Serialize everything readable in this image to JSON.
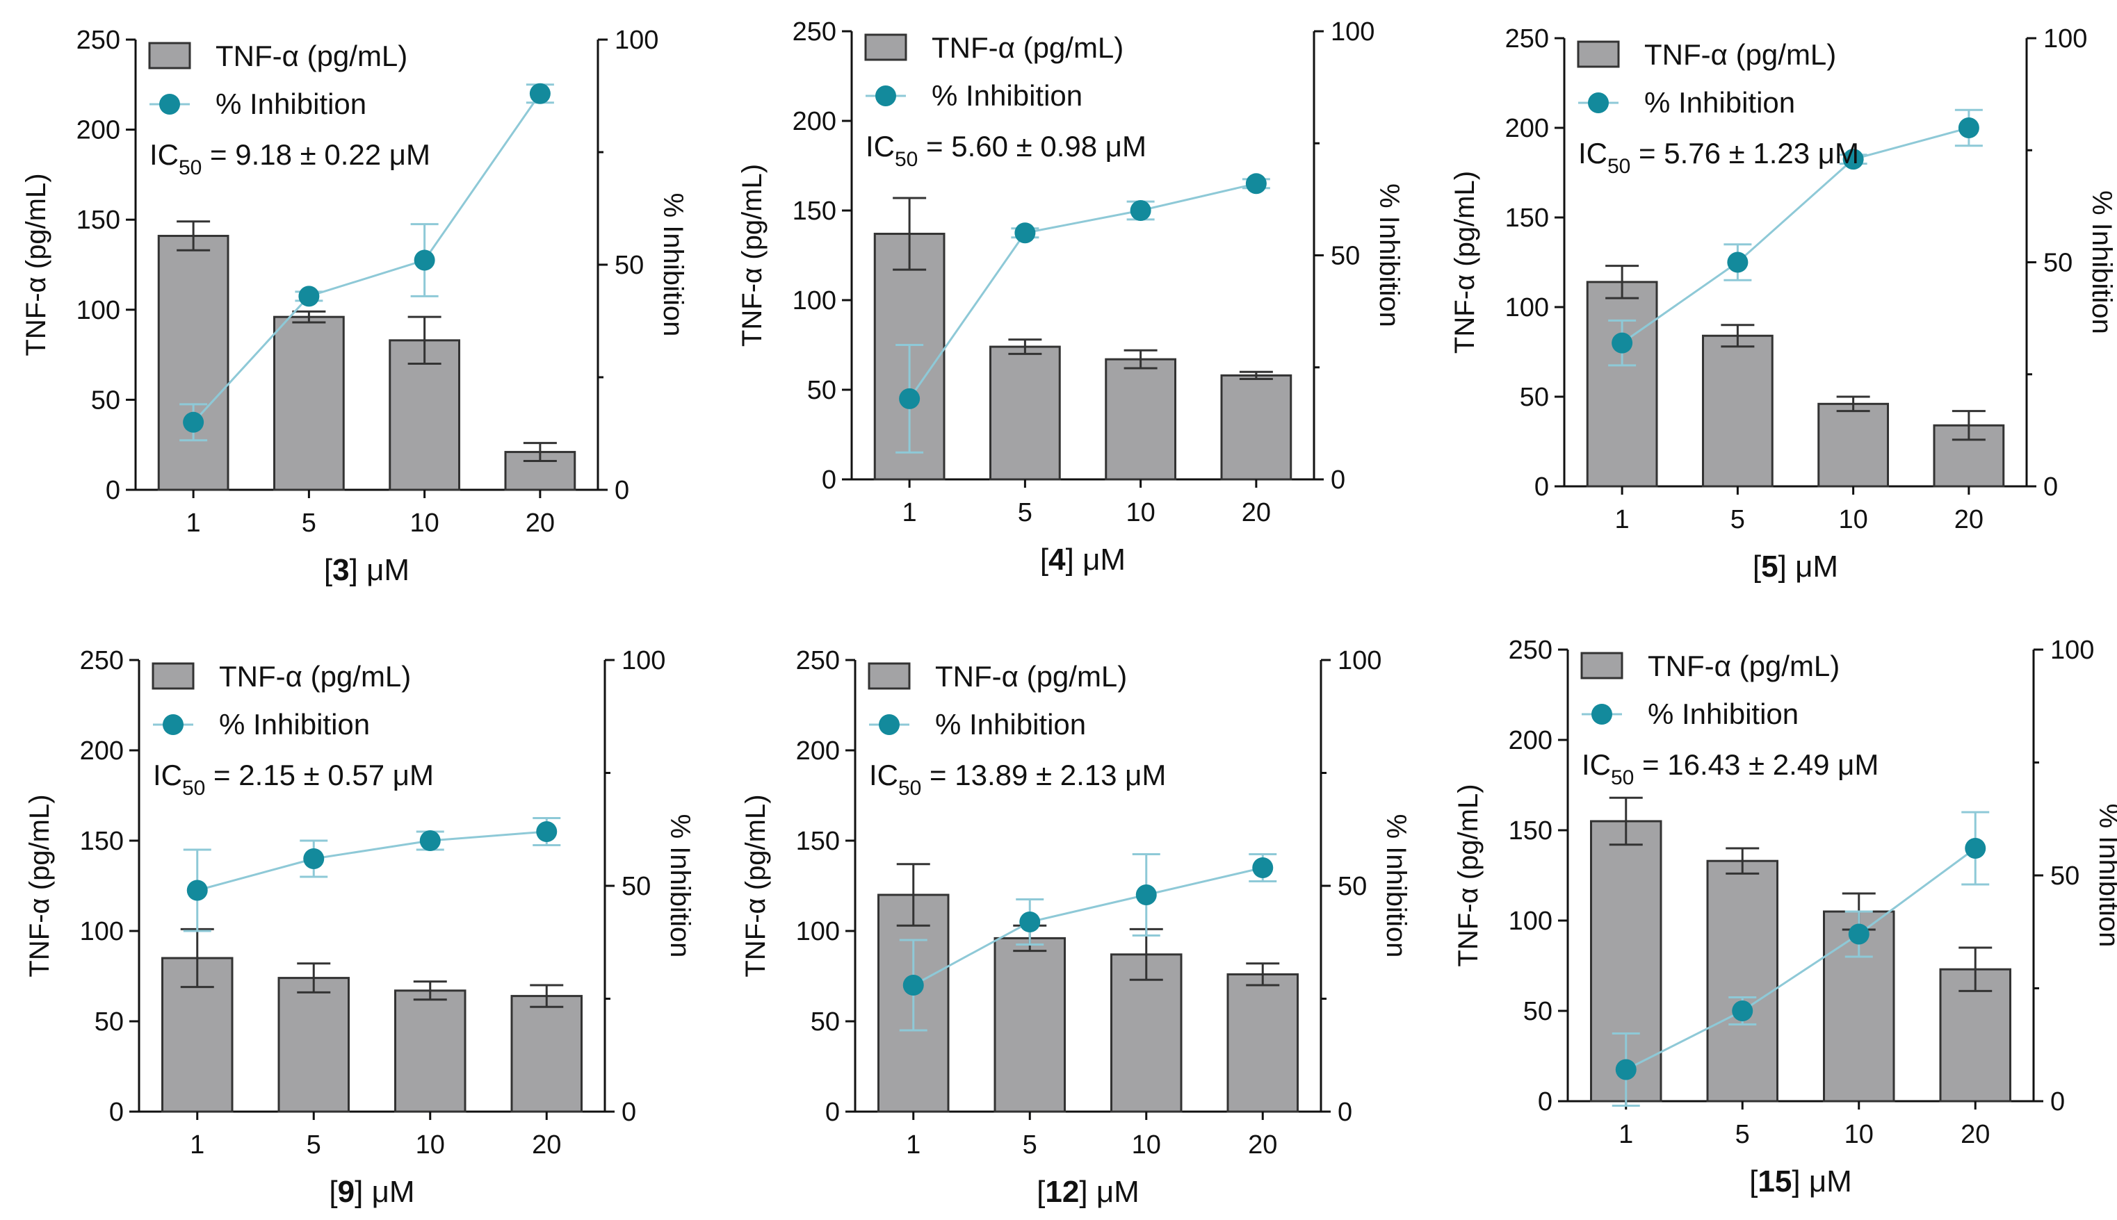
{
  "legend": {
    "bar_label": "TNF-α (pg/mL)",
    "line_label": "% Inhibition"
  },
  "colors": {
    "bar_fill": "#a3a3a5",
    "bar_stroke": "#333333",
    "line": "#8ec9d7",
    "marker": "#138a9c",
    "axis": "#111111"
  },
  "chart_data": [
    {
      "type": "bar",
      "compound": "3",
      "xlabel_unit": " μM",
      "ic50_prefix": "IC",
      "ic50_sub": "50",
      "ic50_value": " = 9.18 ± 0.22 μM",
      "categories": [
        "1",
        "5",
        "10",
        "20"
      ],
      "ylabel": "TNF-α (pg/mL)",
      "y2label": "% Inhibition",
      "ylim": [
        0,
        250
      ],
      "yticks": [
        0,
        50,
        100,
        150,
        200,
        250
      ],
      "y2lim": [
        0,
        100
      ],
      "y2ticks": [
        0,
        50,
        100
      ],
      "series": [
        {
          "name": "TNF-α (pg/mL)",
          "type": "bar",
          "axis": "left",
          "values": [
            141,
            96,
            83,
            21
          ],
          "errors": [
            8,
            3,
            13,
            5
          ]
        },
        {
          "name": "% Inhibition",
          "type": "line",
          "axis": "right",
          "values": [
            15,
            43,
            51,
            88
          ],
          "errors": [
            4,
            1,
            8,
            2
          ]
        }
      ]
    },
    {
      "type": "bar",
      "compound": "4",
      "xlabel_unit": " μM",
      "ic50_prefix": "IC",
      "ic50_sub": "50",
      "ic50_value": " = 5.60 ± 0.98 μM",
      "categories": [
        "1",
        "5",
        "10",
        "20"
      ],
      "ylabel": "TNF-α (pg/mL)",
      "y2label": "% Inhibition",
      "ylim": [
        0,
        250
      ],
      "yticks": [
        0,
        50,
        100,
        150,
        200,
        250
      ],
      "y2lim": [
        0,
        100
      ],
      "y2ticks": [
        0,
        50,
        100
      ],
      "series": [
        {
          "name": "TNF-α (pg/mL)",
          "type": "bar",
          "axis": "left",
          "values": [
            137,
            74,
            67,
            58
          ],
          "errors": [
            20,
            4,
            5,
            2
          ]
        },
        {
          "name": "% Inhibition",
          "type": "line",
          "axis": "right",
          "values": [
            18,
            55,
            60,
            66
          ],
          "errors": [
            12,
            1,
            2,
            1
          ]
        }
      ]
    },
    {
      "type": "bar",
      "compound": "5",
      "xlabel_unit": " μM",
      "ic50_prefix": "IC",
      "ic50_sub": "50",
      "ic50_value": " = 5.76 ± 1.23 μM",
      "categories": [
        "1",
        "5",
        "10",
        "20"
      ],
      "ylabel": "TNF-α (pg/mL)",
      "y2label": "% Inhibition",
      "ylim": [
        0,
        250
      ],
      "yticks": [
        0,
        50,
        100,
        150,
        200,
        250
      ],
      "y2lim": [
        0,
        100
      ],
      "y2ticks": [
        0,
        50,
        100
      ],
      "series": [
        {
          "name": "TNF-α (pg/mL)",
          "type": "bar",
          "axis": "left",
          "values": [
            114,
            84,
            46,
            34
          ],
          "errors": [
            9,
            6,
            4,
            8
          ]
        },
        {
          "name": "% Inhibition",
          "type": "line",
          "axis": "right",
          "values": [
            32,
            50,
            73,
            80
          ],
          "errors": [
            5,
            4,
            1,
            4
          ]
        }
      ]
    },
    {
      "type": "bar",
      "compound": "9",
      "xlabel_unit": " μM",
      "ic50_prefix": "IC",
      "ic50_sub": "50",
      "ic50_value": " = 2.15 ± 0.57 μM",
      "categories": [
        "1",
        "5",
        "10",
        "20"
      ],
      "ylabel": "TNF-α (pg/mL)",
      "y2label": "% Inhibition",
      "ylim": [
        0,
        250
      ],
      "yticks": [
        0,
        50,
        100,
        150,
        200,
        250
      ],
      "y2lim": [
        0,
        100
      ],
      "y2ticks": [
        0,
        50,
        100
      ],
      "series": [
        {
          "name": "TNF-α (pg/mL)",
          "type": "bar",
          "axis": "left",
          "values": [
            85,
            74,
            67,
            64
          ],
          "errors": [
            16,
            8,
            5,
            6
          ]
        },
        {
          "name": "% Inhibition",
          "type": "line",
          "axis": "right",
          "values": [
            49,
            56,
            60,
            62
          ],
          "errors": [
            9,
            4,
            2,
            3
          ]
        }
      ]
    },
    {
      "type": "bar",
      "compound": "12",
      "xlabel_unit": " μM",
      "ic50_prefix": "IC",
      "ic50_sub": "50",
      "ic50_value": " = 13.89 ± 2.13 μM",
      "categories": [
        "1",
        "5",
        "10",
        "20"
      ],
      "ylabel": "TNF-α (pg/mL)",
      "y2label": "% Inhibition",
      "ylim": [
        0,
        250
      ],
      "yticks": [
        0,
        50,
        100,
        150,
        200,
        250
      ],
      "y2lim": [
        0,
        100
      ],
      "y2ticks": [
        0,
        50,
        100
      ],
      "series": [
        {
          "name": "TNF-α (pg/mL)",
          "type": "bar",
          "axis": "left",
          "values": [
            120,
            96,
            87,
            76
          ],
          "errors": [
            17,
            7,
            14,
            6
          ]
        },
        {
          "name": "% Inhibition",
          "type": "line",
          "axis": "right",
          "values": [
            28,
            42,
            48,
            54
          ],
          "errors": [
            10,
            5,
            9,
            3
          ]
        }
      ]
    },
    {
      "type": "bar",
      "compound": "15",
      "xlabel_unit": " μM",
      "ic50_prefix": "IC",
      "ic50_sub": "50",
      "ic50_value": " = 16.43 ± 2.49 μM",
      "categories": [
        "1",
        "5",
        "10",
        "20"
      ],
      "ylabel": "TNF-α (pg/mL)",
      "y2label": "% Inhibition",
      "ylim": [
        0,
        250
      ],
      "yticks": [
        0,
        50,
        100,
        150,
        200,
        250
      ],
      "y2lim": [
        0,
        100
      ],
      "y2ticks": [
        0,
        50,
        100
      ],
      "series": [
        {
          "name": "TNF-α (pg/mL)",
          "type": "bar",
          "axis": "left",
          "values": [
            155,
            133,
            105,
            73
          ],
          "errors": [
            13,
            7,
            10,
            12
          ]
        },
        {
          "name": "% Inhibition",
          "type": "line",
          "axis": "right",
          "values": [
            7,
            20,
            37,
            56
          ],
          "errors": [
            8,
            3,
            5,
            8
          ]
        }
      ]
    }
  ]
}
